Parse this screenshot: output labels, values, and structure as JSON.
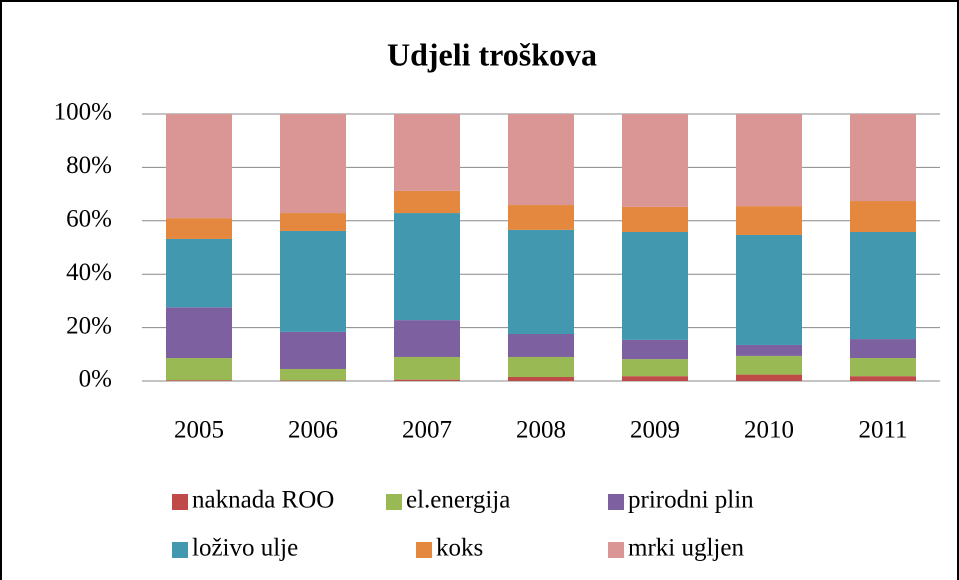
{
  "chart_data": {
    "type": "stacked_bar",
    "title": "Udjeli troškova",
    "categories": [
      "2005",
      "2006",
      "2007",
      "2008",
      "2009",
      "2010",
      "2011"
    ],
    "series": [
      {
        "name": "naknada ROO",
        "color": "#be4b48",
        "values": [
          0.3,
          0.2,
          0.5,
          1.5,
          1.8,
          2.4,
          1.8
        ]
      },
      {
        "name": "el.energija",
        "color": "#98b954",
        "values": [
          8.3,
          4.3,
          8.5,
          7.5,
          6.4,
          7.0,
          6.8
        ]
      },
      {
        "name": "prirodni plin",
        "color": "#7d60a0",
        "values": [
          19.0,
          13.9,
          13.8,
          8.6,
          7.2,
          4.1,
          7.1
        ]
      },
      {
        "name": "loživo ulje",
        "color": "#4198af",
        "values": [
          25.6,
          37.8,
          40.1,
          39.0,
          40.4,
          41.2,
          40.1
        ]
      },
      {
        "name": "koks",
        "color": "#e3883e",
        "values": [
          7.8,
          6.7,
          8.3,
          9.3,
          9.4,
          10.8,
          11.6
        ]
      },
      {
        "name": "mrki ugljen",
        "color": "#d99694",
        "values": [
          39.0,
          37.1,
          28.8,
          34.1,
          34.8,
          34.5,
          32.6
        ]
      }
    ],
    "ylim": [
      0,
      100
    ],
    "yticks": [
      {
        "value": 0,
        "label": "0%"
      },
      {
        "value": 20,
        "label": "20%"
      },
      {
        "value": 40,
        "label": "40%"
      },
      {
        "value": 60,
        "label": "60%"
      },
      {
        "value": 80,
        "label": "80%"
      },
      {
        "value": 100,
        "label": "100%"
      }
    ],
    "grid": true
  }
}
